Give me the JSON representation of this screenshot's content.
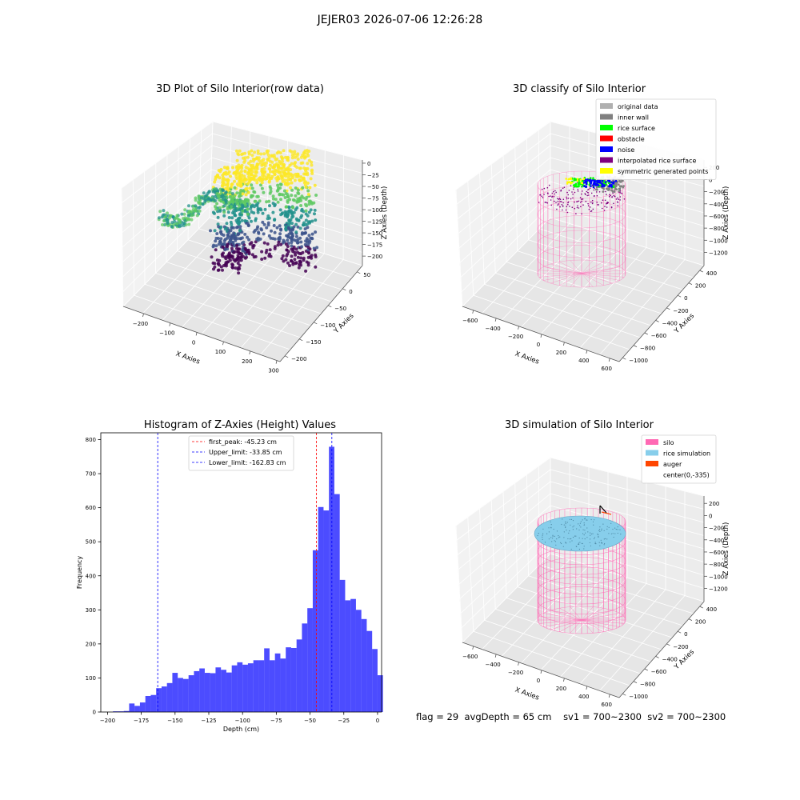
{
  "figure": {
    "suptitle": "JEJER03 2026-07-06 12:26:28",
    "status": {
      "flag": "flag = 29",
      "avg_depth": "avgDepth = 65 cm",
      "sv1": "sv1 = 700~2300",
      "sv2": "sv2 = 700~2300"
    }
  },
  "chart_data": [
    {
      "type": "scatter",
      "title": "3D Plot of Silo Interior(row data)",
      "xlabel": "X Axies",
      "ylabel": "Y Axies",
      "zlabel": "Z Axies (Depth)",
      "xticks": [
        "−200",
        "−100",
        "0",
        "100",
        "200",
        "300"
      ],
      "yticks": [
        "−200",
        "−150",
        "−100",
        "−50",
        "0",
        "50"
      ],
      "zticks": [
        "0",
        "−25",
        "−50",
        "−75",
        "−100",
        "−125",
        "−150",
        "−175",
        "−200"
      ],
      "xlim": [
        -250,
        300
      ],
      "ylim": [
        -200,
        60
      ],
      "zlim": [
        -205,
        5
      ],
      "colormap": "viridis",
      "colors": [
        "#440154",
        "#3b528b",
        "#21918c",
        "#5ec962",
        "#fde725"
      ]
    },
    {
      "type": "scatter",
      "title": "3D classify of Silo Interior",
      "xlabel": "X Axies",
      "ylabel": "Y Axies",
      "zlabel": "Z Axies (Depth)",
      "xticks": [
        "−600",
        "−400",
        "−200",
        "0",
        "200",
        "400",
        "600"
      ],
      "yticks": [
        "−1000",
        "−800",
        "−600",
        "−400",
        "−200",
        "0",
        "200",
        "400"
      ],
      "zticks": [
        "200",
        "0",
        "−200",
        "−400",
        "−600",
        "−800",
        "−1000",
        "−1200"
      ],
      "legend_position": "top-right",
      "legend": [
        {
          "label": "original data",
          "color": "#b0b0b0"
        },
        {
          "label": "inner wall",
          "color": "#808080"
        },
        {
          "label": "rice surface",
          "color": "#00ff00"
        },
        {
          "label": "obstacle",
          "color": "#ff0000"
        },
        {
          "label": "noise",
          "color": "#0000ff"
        },
        {
          "label": "interpolated rice surface",
          "color": "#800080"
        },
        {
          "label": "symmetric generated points",
          "color": "#ffff00"
        }
      ],
      "silo_color": "#ff69b4"
    },
    {
      "type": "bar",
      "title": "Histogram of Z-Axies (Height) Values",
      "xlabel": "Depth (cm)",
      "ylabel": "Frequency",
      "bar_color": "#0000ff",
      "bins": [
        {
          "x0": -200,
          "x1": -196,
          "count": 0
        },
        {
          "x0": -196,
          "x1": -192,
          "count": 2
        },
        {
          "x0": -192,
          "x1": -188,
          "count": 2
        },
        {
          "x0": -188,
          "x1": -184,
          "count": 3
        },
        {
          "x0": -184,
          "x1": -180,
          "count": 25
        },
        {
          "x0": -180,
          "x1": -176,
          "count": 18
        },
        {
          "x0": -176,
          "x1": -172,
          "count": 28
        },
        {
          "x0": -172,
          "x1": -168,
          "count": 47
        },
        {
          "x0": -168,
          "x1": -164,
          "count": 50
        },
        {
          "x0": -164,
          "x1": -160,
          "count": 70
        },
        {
          "x0": -160,
          "x1": -156,
          "count": 75
        },
        {
          "x0": -156,
          "x1": -152,
          "count": 85
        },
        {
          "x0": -152,
          "x1": -148,
          "count": 115
        },
        {
          "x0": -148,
          "x1": -144,
          "count": 100
        },
        {
          "x0": -144,
          "x1": -140,
          "count": 97
        },
        {
          "x0": -140,
          "x1": -136,
          "count": 108
        },
        {
          "x0": -136,
          "x1": -132,
          "count": 120
        },
        {
          "x0": -132,
          "x1": -128,
          "count": 128
        },
        {
          "x0": -128,
          "x1": -124,
          "count": 115
        },
        {
          "x0": -124,
          "x1": -120,
          "count": 114
        },
        {
          "x0": -120,
          "x1": -116,
          "count": 131
        },
        {
          "x0": -116,
          "x1": -112,
          "count": 124
        },
        {
          "x0": -112,
          "x1": -108,
          "count": 116
        },
        {
          "x0": -108,
          "x1": -104,
          "count": 137
        },
        {
          "x0": -104,
          "x1": -100,
          "count": 146
        },
        {
          "x0": -100,
          "x1": -96,
          "count": 139
        },
        {
          "x0": -96,
          "x1": -92,
          "count": 143
        },
        {
          "x0": -92,
          "x1": -88,
          "count": 152
        },
        {
          "x0": -88,
          "x1": -84,
          "count": 152
        },
        {
          "x0": -84,
          "x1": -80,
          "count": 187
        },
        {
          "x0": -80,
          "x1": -76,
          "count": 152
        },
        {
          "x0": -76,
          "x1": -72,
          "count": 172
        },
        {
          "x0": -72,
          "x1": -68,
          "count": 157
        },
        {
          "x0": -68,
          "x1": -64,
          "count": 190
        },
        {
          "x0": -64,
          "x1": -60,
          "count": 188
        },
        {
          "x0": -60,
          "x1": -56,
          "count": 213
        },
        {
          "x0": -56,
          "x1": -52,
          "count": 260
        },
        {
          "x0": -52,
          "x1": -48,
          "count": 305
        },
        {
          "x0": -48,
          "x1": -44,
          "count": 475
        },
        {
          "x0": -44,
          "x1": -40,
          "count": 602
        },
        {
          "x0": -40,
          "x1": -36,
          "count": 592
        },
        {
          "x0": -36,
          "x1": -32,
          "count": 779
        },
        {
          "x0": -32,
          "x1": -28,
          "count": 640
        },
        {
          "x0": -28,
          "x1": -24,
          "count": 388
        },
        {
          "x0": -24,
          "x1": -20,
          "count": 328
        },
        {
          "x0": -20,
          "x1": -16,
          "count": 332
        },
        {
          "x0": -16,
          "x1": -12,
          "count": 300
        },
        {
          "x0": -12,
          "x1": -8,
          "count": 273
        },
        {
          "x0": -8,
          "x1": -4,
          "count": 238
        },
        {
          "x0": -4,
          "x1": 0,
          "count": 185
        },
        {
          "x0": 0,
          "x1": 4,
          "count": 108
        }
      ],
      "xlim": [
        -205,
        3
      ],
      "ylim": [
        0,
        820
      ],
      "xticks": [
        -200,
        -175,
        -150,
        -125,
        -100,
        -75,
        -50,
        -25,
        0
      ],
      "xtick_labels": [
        "−200",
        "−175",
        "−150",
        "−125",
        "−100",
        "−75",
        "−50",
        "−25",
        "0"
      ],
      "yticks": [
        0,
        100,
        200,
        300,
        400,
        500,
        600,
        700,
        800
      ],
      "ytick_labels": [
        "0",
        "100",
        "200",
        "300",
        "400",
        "500",
        "600",
        "700",
        "800"
      ],
      "vlines": [
        {
          "x": -45.23,
          "color": "#ff0000",
          "label": "first_peak: -45.23 cm"
        },
        {
          "x": -33.85,
          "color": "#0000ff",
          "label": "Upper_limit: -33.85 cm"
        },
        {
          "x": -162.83,
          "color": "#0000ff",
          "label": "Lower_limit: -162.83 cm"
        }
      ],
      "legend_position": "top-center"
    },
    {
      "type": "scatter",
      "title": "3D simulation of Silo Interior",
      "xlabel": "X Axies",
      "ylabel": "Y Axies",
      "zlabel": "Z Axies (Depth)",
      "xticks": [
        "−600",
        "−400",
        "−200",
        "0",
        "200",
        "400",
        "600"
      ],
      "yticks": [
        "−1000",
        "−800",
        "−600",
        "−400",
        "−200",
        "0",
        "200",
        "400"
      ],
      "zticks": [
        "200",
        "0",
        "−200",
        "−400",
        "−600",
        "−800",
        "−1000",
        "−1200"
      ],
      "legend_position": "top-right",
      "legend": [
        {
          "label": "silo",
          "color": "#ff69b4"
        },
        {
          "label": "rice simulation",
          "color": "#87ceeb"
        },
        {
          "label": "auger",
          "color": "#ff4500"
        },
        {
          "label": "center(0,-335)",
          "color": ""
        }
      ]
    }
  ]
}
